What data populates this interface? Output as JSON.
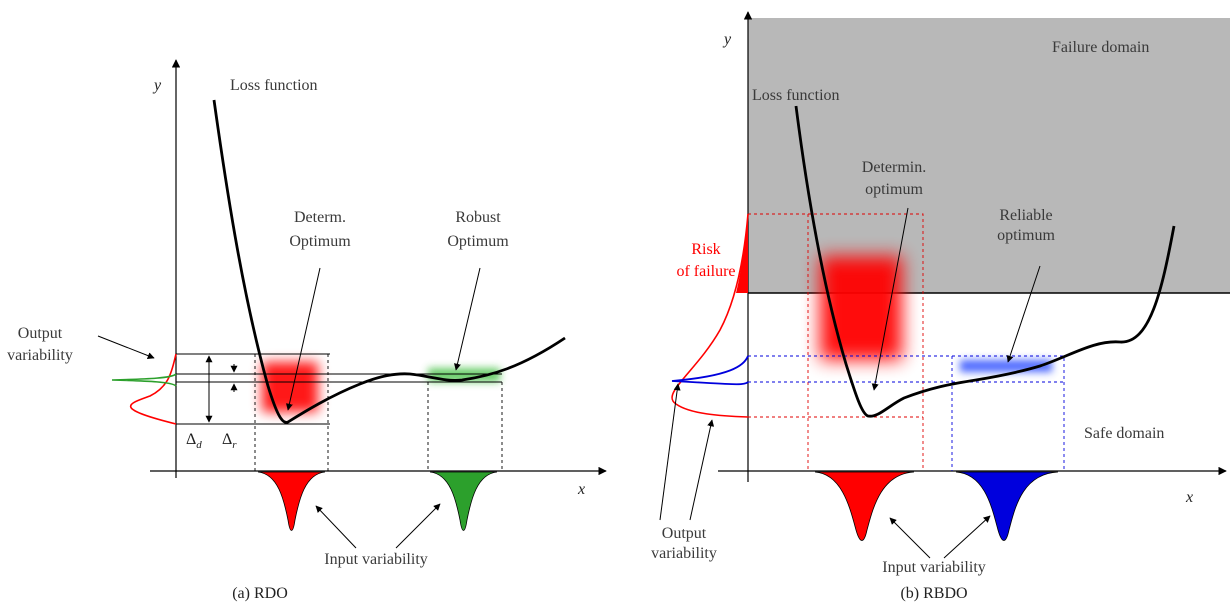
{
  "panel_a": {
    "caption": "(a) RDO",
    "y_axis": "y",
    "x_axis": "x",
    "loss_function": "Loss function",
    "determ_optimum": [
      "Determ.",
      "Optimum"
    ],
    "robust_optimum": [
      "Robust",
      "Optimum"
    ],
    "output_variability": [
      "Output",
      "variability"
    ],
    "delta_d": "Δ",
    "delta_d_sub": "d",
    "delta_r": "Δ",
    "delta_r_sub": "r",
    "input_variability": "Input variability"
  },
  "panel_b": {
    "caption": "(b) RBDO",
    "y_axis": "y",
    "x_axis": "x",
    "failure_domain": "Failure domain",
    "safe_domain": "Safe domain",
    "loss_function": "Loss function",
    "determin_optimum": [
      "Determin.",
      "optimum"
    ],
    "reliable_optimum": [
      "Reliable",
      "optimum"
    ],
    "risk_of_failure": [
      "Risk",
      "of failure"
    ],
    "output_variability": [
      "Output",
      "variability"
    ],
    "input_variability": "Input variability"
  },
  "colors": {
    "failure_fill": "#b8b8b8",
    "red": "#ff0000",
    "green": "#2ca02c",
    "blue": "#0000dd",
    "light_green": "#7fd67f",
    "light_blue": "#5a78ff"
  }
}
